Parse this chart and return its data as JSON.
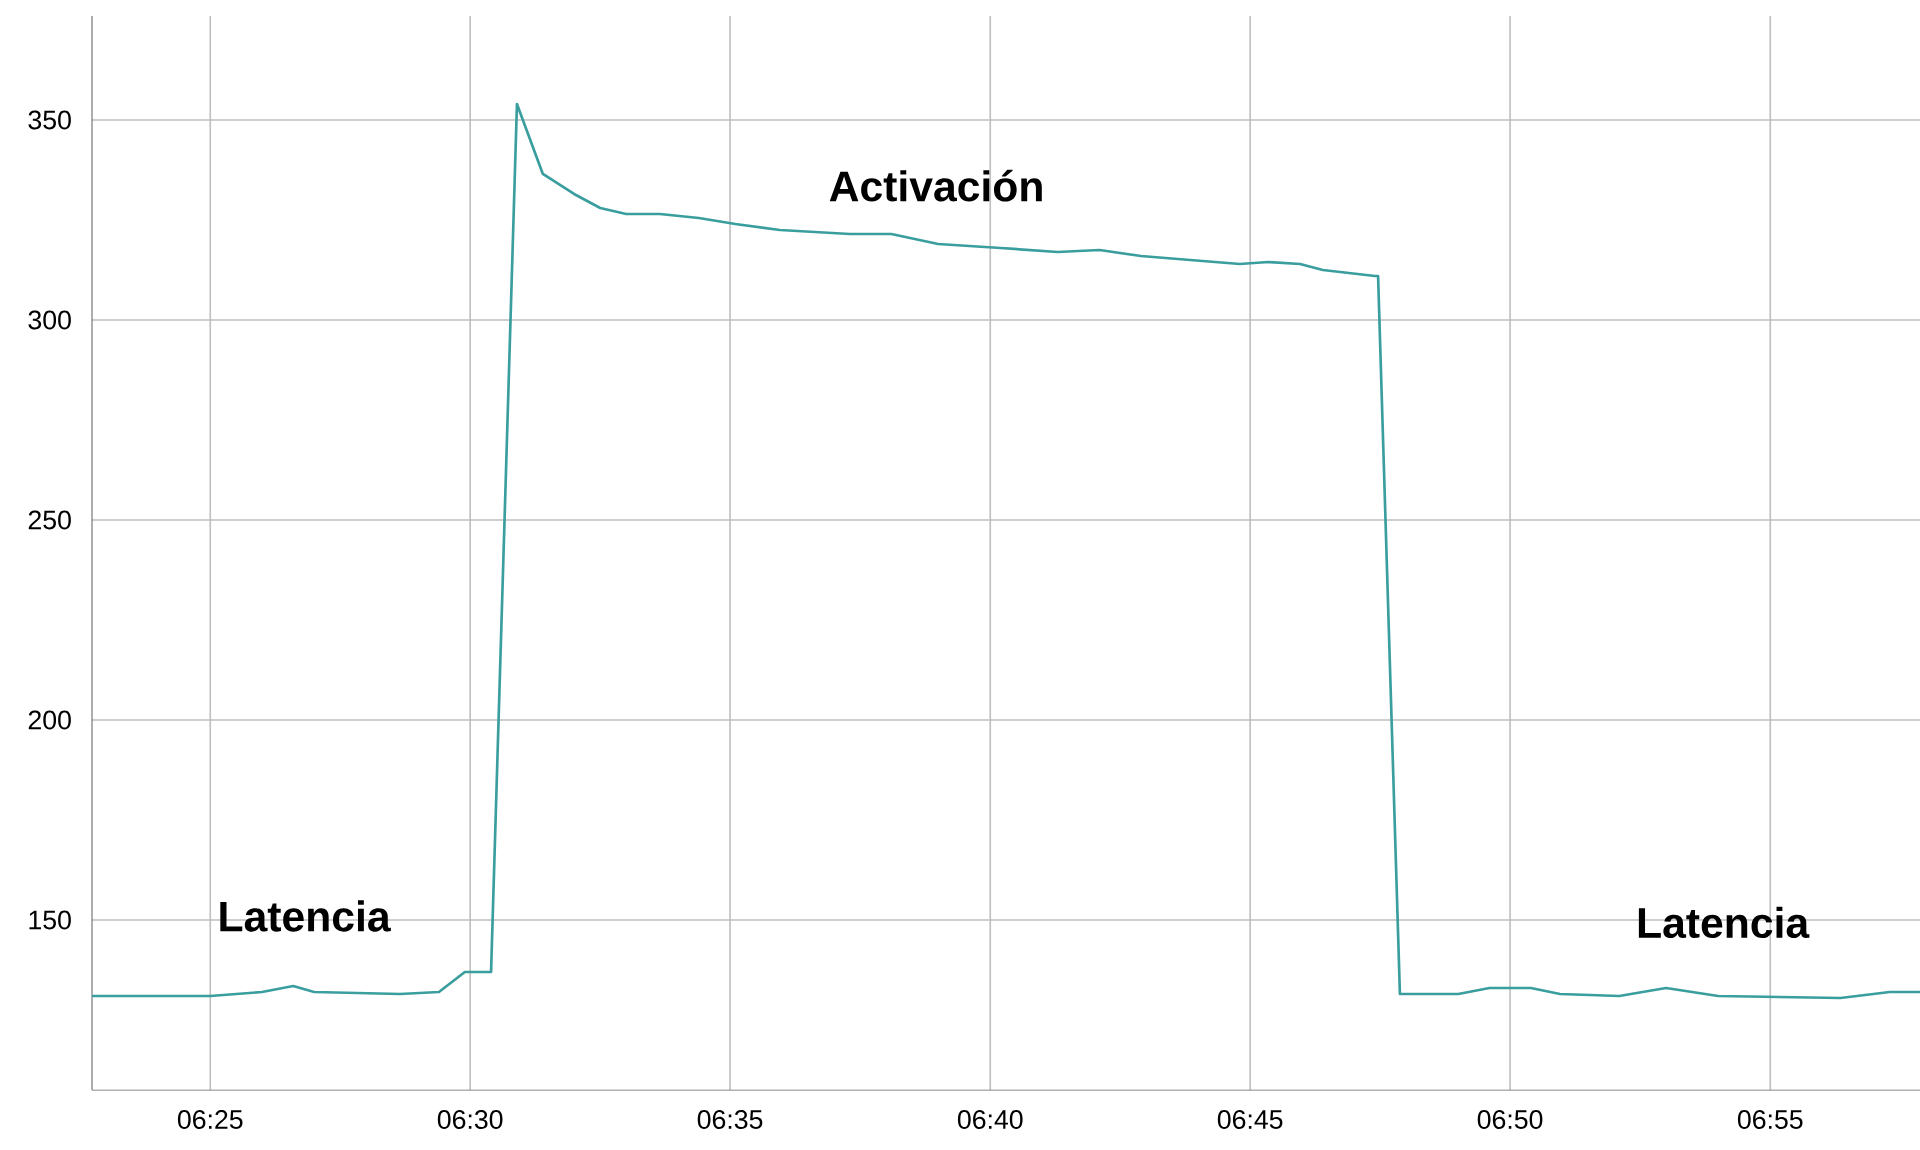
{
  "chart_data": {
    "type": "line",
    "color": "#3a9e9e",
    "x": [
      6.3788,
      6.4167,
      6.4333,
      6.4433,
      6.45,
      6.4775,
      6.49,
      6.4983,
      6.5067,
      6.515,
      6.5233,
      6.5333,
      6.5417,
      6.55,
      6.5608,
      6.5733,
      6.585,
      6.5993,
      6.6217,
      6.635,
      6.65,
      6.67,
      6.6883,
      6.7017,
      6.715,
      6.7308,
      6.7467,
      6.7558,
      6.766,
      6.7733,
      6.79,
      6.791,
      6.798,
      6.8167,
      6.8267,
      6.84,
      6.8493,
      6.8683,
      6.8833,
      6.9,
      6.9392,
      6.955,
      6.9647
    ],
    "values": [
      131,
      131,
      132,
      133.5,
      132,
      131.5,
      132,
      137,
      137,
      354,
      336.5,
      331.5,
      328,
      326.5,
      326.5,
      325.5,
      324,
      322.5,
      321.5,
      321.5,
      319,
      318,
      317,
      317.5,
      316,
      315,
      314,
      314.5,
      314,
      312.5,
      311,
      311,
      131.5,
      131.5,
      133,
      133,
      131.5,
      131,
      133,
      131,
      130.5,
      132,
      132
    ],
    "xlim": [
      6.3788,
      6.9647
    ],
    "xticks": [
      {
        "value": 6.4167,
        "label": "06:25"
      },
      {
        "value": 6.5,
        "label": "06:30"
      },
      {
        "value": 6.5833,
        "label": "06:35"
      },
      {
        "value": 6.6667,
        "label": "06:40"
      },
      {
        "value": 6.75,
        "label": "06:45"
      },
      {
        "value": 6.8333,
        "label": "06:50"
      },
      {
        "value": 6.9167,
        "label": "06:55"
      }
    ],
    "ylim": [
      107.5,
      376
    ],
    "yticks": [
      150,
      200,
      250,
      300,
      350
    ],
    "grid": true,
    "marker": "none",
    "line_style": "solid",
    "annotations": [
      "Latencia",
      "Activación",
      "Latencia"
    ]
  }
}
